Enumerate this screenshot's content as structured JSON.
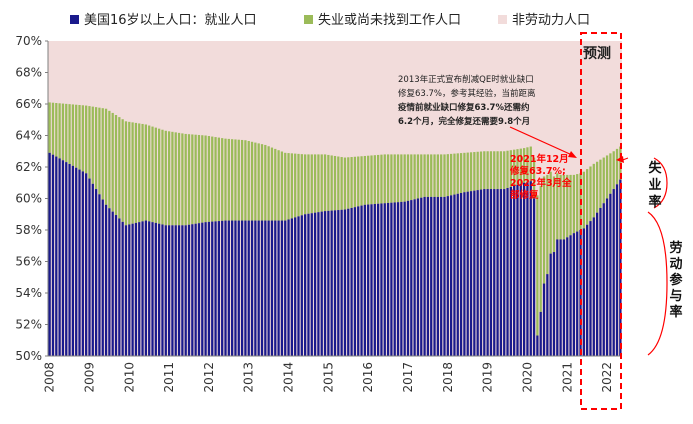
{
  "colors": {
    "employment": "#1a1a8c",
    "unemployment": "#9bbb59",
    "non_labor": "#f2dcdb",
    "forecast_box": "#ff0000",
    "right_bracket": "#ff0000"
  },
  "legend": [
    {
      "label": "美国16岁以上人口：就业人口",
      "color": "#1a1a8c"
    },
    {
      "label": "失业或尚未找到工作人口",
      "color": "#9bbb59"
    },
    {
      "label": "非劳动力人口",
      "color": "#f2dcdb"
    }
  ],
  "forecast_label": "预测",
  "right_labels": {
    "unemployment_rate": "失业率",
    "participation_rate": "劳动参与率"
  },
  "annotation": {
    "lines": [
      "2013年正式宣布削减QE时就业缺口",
      "修复63.7%，参考其经验，当前距离",
      "疫情前就业缺口修复63.7%还需约",
      "6.2个月，完全修复还需要9.8个月"
    ]
  },
  "red_annotation": {
    "lines": [
      "2021年12月",
      "修复63.7%;",
      "2022年3月全",
      "部修复"
    ]
  },
  "chart_data": {
    "type": "bar",
    "stacked": true,
    "ylim": [
      50,
      70
    ],
    "yticks": [
      "50%",
      "52%",
      "54%",
      "56%",
      "58%",
      "60%",
      "62%",
      "64%",
      "66%",
      "68%",
      "70%"
    ],
    "xticks": [
      "2008",
      "2009",
      "2010",
      "2011",
      "2012",
      "2013",
      "2014",
      "2015",
      "2016",
      "2017",
      "2018",
      "2019",
      "2020",
      "2021",
      "2022"
    ],
    "x_start": "2008-01",
    "forecast_start": "2021-06",
    "series": [
      {
        "name": "美国16岁以上人口：就业人口",
        "key": "employment",
        "points": [
          [
            "2008-01",
            62.9
          ],
          [
            "2008-12",
            61.6
          ],
          [
            "2009-06",
            59.6
          ],
          [
            "2009-12",
            58.3
          ],
          [
            "2010-06",
            58.6
          ],
          [
            "2010-12",
            58.3
          ],
          [
            "2011-06",
            58.3
          ],
          [
            "2011-12",
            58.5
          ],
          [
            "2012-06",
            58.6
          ],
          [
            "2012-12",
            58.6
          ],
          [
            "2013-06",
            58.6
          ],
          [
            "2013-12",
            58.6
          ],
          [
            "2014-06",
            59.0
          ],
          [
            "2014-12",
            59.2
          ],
          [
            "2015-06",
            59.3
          ],
          [
            "2015-12",
            59.6
          ],
          [
            "2016-06",
            59.7
          ],
          [
            "2016-12",
            59.8
          ],
          [
            "2017-06",
            60.1
          ],
          [
            "2017-12",
            60.1
          ],
          [
            "2018-06",
            60.4
          ],
          [
            "2018-12",
            60.6
          ],
          [
            "2019-06",
            60.6
          ],
          [
            "2019-12",
            61.0
          ],
          [
            "2020-02",
            61.1
          ],
          [
            "2020-03",
            60.0
          ],
          [
            "2020-04",
            51.3
          ],
          [
            "2020-05",
            52.8
          ],
          [
            "2020-06",
            54.6
          ],
          [
            "2020-07",
            55.2
          ],
          [
            "2020-08",
            56.5
          ],
          [
            "2020-09",
            56.6
          ],
          [
            "2020-10",
            57.4
          ],
          [
            "2020-11",
            57.4
          ],
          [
            "2020-12",
            57.4
          ],
          [
            "2021-03",
            57.8
          ],
          [
            "2021-05",
            58.0
          ],
          [
            "2021-06",
            58.1
          ],
          [
            "2021-09",
            58.8
          ],
          [
            "2021-12",
            59.7
          ],
          [
            "2022-03",
            60.6
          ],
          [
            "2022-05",
            61.2
          ]
        ]
      },
      {
        "name": "失业或尚未找到工作人口",
        "key": "unemployment",
        "points": [
          [
            "2008-01",
            66.1
          ],
          [
            "2008-12",
            65.9
          ],
          [
            "2009-06",
            65.7
          ],
          [
            "2009-12",
            64.9
          ],
          [
            "2010-06",
            64.7
          ],
          [
            "2010-12",
            64.3
          ],
          [
            "2011-06",
            64.1
          ],
          [
            "2011-12",
            64.0
          ],
          [
            "2012-06",
            63.8
          ],
          [
            "2012-12",
            63.7
          ],
          [
            "2013-06",
            63.4
          ],
          [
            "2013-12",
            62.9
          ],
          [
            "2014-06",
            62.8
          ],
          [
            "2014-12",
            62.8
          ],
          [
            "2015-06",
            62.6
          ],
          [
            "2015-12",
            62.7
          ],
          [
            "2016-06",
            62.8
          ],
          [
            "2016-12",
            62.8
          ],
          [
            "2017-06",
            62.8
          ],
          [
            "2017-12",
            62.8
          ],
          [
            "2018-06",
            62.9
          ],
          [
            "2018-12",
            63.0
          ],
          [
            "2019-06",
            63.0
          ],
          [
            "2019-12",
            63.2
          ],
          [
            "2020-02",
            63.3
          ],
          [
            "2020-03",
            62.6
          ],
          [
            "2020-04",
            60.2
          ],
          [
            "2020-05",
            60.8
          ],
          [
            "2020-06",
            61.4
          ],
          [
            "2020-07",
            61.5
          ],
          [
            "2020-08",
            61.7
          ],
          [
            "2020-09",
            61.4
          ],
          [
            "2020-10",
            61.6
          ],
          [
            "2020-11",
            61.5
          ],
          [
            "2020-12",
            61.5
          ],
          [
            "2021-03",
            61.5
          ],
          [
            "2021-05",
            61.6
          ],
          [
            "2021-06",
            61.7
          ],
          [
            "2021-09",
            62.2
          ],
          [
            "2021-12",
            62.6
          ],
          [
            "2022-03",
            63.0
          ],
          [
            "2022-05",
            63.3
          ]
        ]
      }
    ]
  }
}
